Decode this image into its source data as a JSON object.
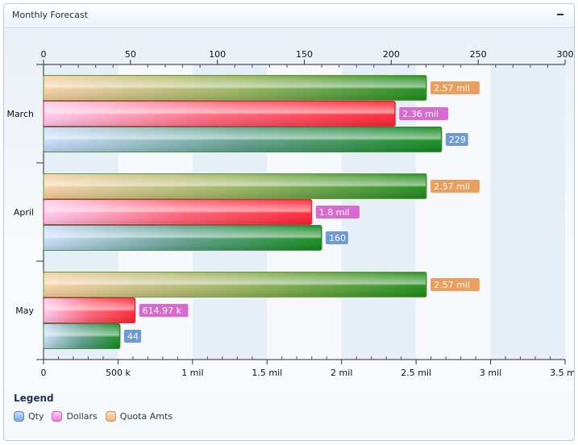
{
  "panel": {
    "title": "Monthly Forecast"
  },
  "legend": {
    "title": "Legend",
    "items": [
      {
        "label": "Qty",
        "color": "#7fa9e6"
      },
      {
        "label": "Dollars",
        "color": "#ef7fd9"
      },
      {
        "label": "Quota Amts",
        "color": "#f2b27a"
      }
    ]
  },
  "chart_data": {
    "type": "bar",
    "orientation": "horizontal",
    "categories": [
      "March",
      "April",
      "May"
    ],
    "top_axis": {
      "range": [
        0,
        300
      ],
      "ticks": [
        "0",
        "50",
        "100",
        "150",
        "200",
        "250",
        "300"
      ]
    },
    "bottom_axis": {
      "range": [
        0,
        3500000
      ],
      "ticks": [
        "0",
        "500 k",
        "1 mil",
        "1.5 mil",
        "2 mil",
        "2.5 mil",
        "3 mil",
        "3.5 mil"
      ]
    },
    "series": [
      {
        "name": "Quota Amts",
        "axis": "bottom",
        "values": [
          2570000,
          2570000,
          2570000
        ],
        "labels": [
          "2.57 mil",
          "2.57 mil",
          "2.57 mil"
        ],
        "label_color": "#eb9f5d"
      },
      {
        "name": "Dollars",
        "axis": "bottom",
        "values": [
          2360000,
          1800000,
          614970
        ],
        "labels": [
          "2.36 mil",
          "1.8 mil",
          "614.97 k"
        ],
        "label_color": "#d86ad0"
      },
      {
        "name": "Qty",
        "axis": "top",
        "values": [
          229,
          160,
          44
        ],
        "labels": [
          "229",
          "160",
          "44"
        ],
        "label_color": "#6e9ad8"
      }
    ],
    "grid": true,
    "legend_position": "bottom-left"
  }
}
